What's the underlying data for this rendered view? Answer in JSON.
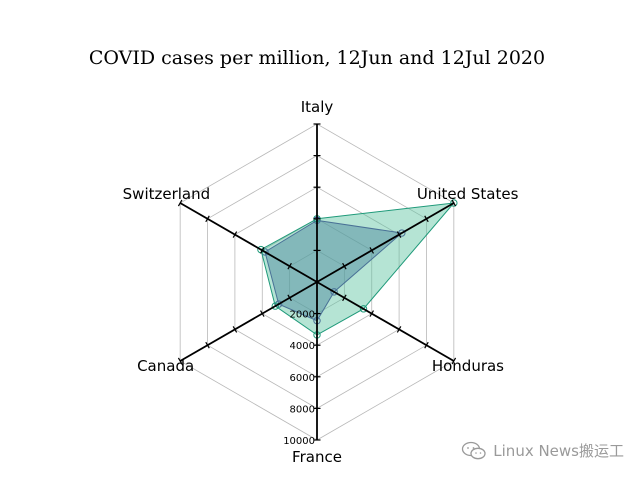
{
  "chart_data": {
    "type": "radar",
    "title": "COVID cases per million, 12Jun and 12Jul 2020",
    "categories": [
      "Italy",
      "United States",
      "Honduras",
      "France",
      "Canada",
      "Switzerland"
    ],
    "rlim": [
      0,
      10000
    ],
    "r_ticks": [
      2000,
      4000,
      6000,
      8000,
      10000
    ],
    "grid": true,
    "series": [
      {
        "values": [
          3900,
          6200,
          1250,
          2450,
          2800,
          3800
        ],
        "color": "#3b2e8f",
        "fill": "#4a5fa0",
        "fill_opacity": 0.5
      },
      {
        "values": [
          4000,
          10000,
          3400,
          3350,
          3050,
          4100
        ],
        "color": "#1f9a7a",
        "fill": "#5cc4a0",
        "fill_opacity": 0.45
      }
    ]
  },
  "watermark": {
    "text": "Linux News搬运工",
    "icon": "wechat-icon"
  }
}
